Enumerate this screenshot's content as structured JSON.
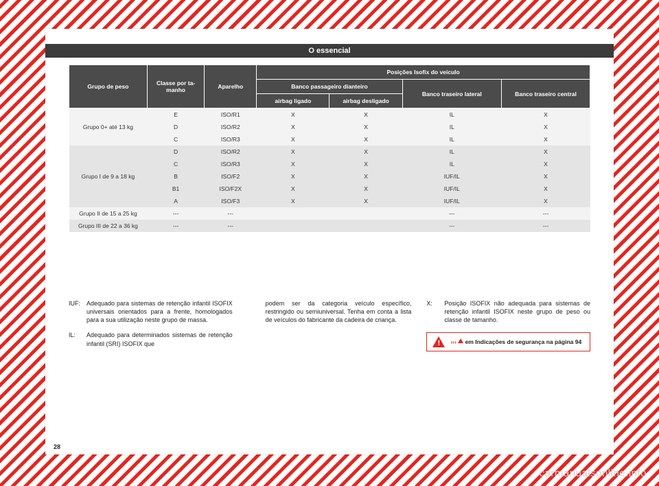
{
  "header": {
    "title": "O essencial"
  },
  "page_number": "28",
  "watermark": "carmanualsonline.info",
  "table": {
    "col_widths_pct": [
      15,
      11,
      10,
      14,
      14,
      19,
      17
    ],
    "head": {
      "c1": "Grupo de peso",
      "c2": "Classe por ta-\nmanho",
      "c3": "Aparelho",
      "c4": "Posições Isofix do veículo",
      "c5": "Banco passageiro dianteiro",
      "c6": "Banco traseiro lateral",
      "c7": "Banco traseiro central",
      "c8": "airbag ligado",
      "c9": "airbag desligado"
    },
    "groups": [
      {
        "label": "Grupo 0+ até 13 kg",
        "shade": 0,
        "rows": [
          [
            "E",
            "ISO/R1",
            "X",
            "X",
            "IL",
            "X"
          ],
          [
            "D",
            "ISO/R2",
            "X",
            "X",
            "IL",
            "X"
          ],
          [
            "C",
            "ISO/R3",
            "X",
            "X",
            "IL",
            "X"
          ]
        ]
      },
      {
        "label": "Grupo I de 9 a 18 kg",
        "shade": 1,
        "rows": [
          [
            "D",
            "ISO/R2",
            "X",
            "X",
            "IL",
            "X"
          ],
          [
            "C",
            "ISO/R3",
            "X",
            "X",
            "IL",
            "X"
          ],
          [
            "B",
            "ISO/F2",
            "X",
            "X",
            "IUF/IL",
            "X"
          ],
          [
            "B1",
            "ISO/F2X",
            "X",
            "X",
            "IUF/IL",
            "X"
          ],
          [
            "A",
            "ISO/F3",
            "X",
            "X",
            "IUF/IL",
            "X"
          ]
        ]
      },
      {
        "label": "Grupo II de 15 a 25 kg",
        "shade": 0,
        "rows": [
          [
            "---",
            "---",
            "",
            "",
            "---",
            "---"
          ]
        ]
      },
      {
        "label": "Grupo III de 22 a 36 kg",
        "shade": 1,
        "rows": [
          [
            "---",
            "---",
            "",
            "",
            "---",
            "---"
          ]
        ]
      }
    ]
  },
  "notes": {
    "col1": [
      {
        "tag": "IUF:",
        "txt": "Adequado para sistemas de retenção infantil ISOFIX universais orientados para a frente, homologados para a sua utilização neste grupo de massa."
      },
      {
        "tag": "IL:",
        "txt": "Adequado para determinados sistemas de retenção infantil (SRI) ISOFIX que"
      }
    ],
    "col2": [
      {
        "tag": "",
        "txt": "podem ser da categoria veículo específico, restringido ou semiuniversal. Tenha em conta a lista de veículos do fabricante da cadeira de criança."
      }
    ],
    "col3": [
      {
        "tag": "X:",
        "txt": "Posição ISOFIX não adequada para sistemas de retenção infantil ISOFIX neste grupo de peso ou classe de tamanho."
      }
    ],
    "warning": {
      "arrow": "›››",
      "text": " em Indicações de segurança na página 94"
    }
  },
  "colors": {
    "stripe": "#e42620",
    "header_bg": "#3b3b3b",
    "th_bg": "#4b4b4b",
    "row_light": "#f3f3f3",
    "row_dark": "#e4e4e4"
  }
}
